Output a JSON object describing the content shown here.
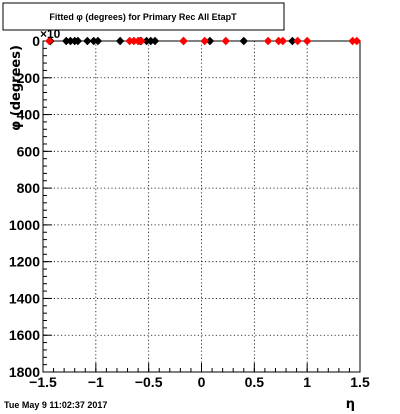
{
  "chart_data": {
    "type": "scatter",
    "title": "Fitted φ (degrees) for Primary Rec All EtapT",
    "xlabel": "η",
    "ylabel": "φ (degrees)",
    "y_exponent_label": "×10",
    "xlim": [
      -1.5,
      1.5
    ],
    "ylim": [
      1800,
      0
    ],
    "y_inverted": true,
    "grid": true,
    "x_ticks": [
      "−1.5",
      "−1",
      "−0.5",
      "0",
      "0.5",
      "1",
      "1.5"
    ],
    "y_ticks": [
      "0",
      "200",
      "400",
      "600",
      "800",
      "1000",
      "1200",
      "1400",
      "1600",
      "1800"
    ],
    "series": [
      {
        "color": "#000000",
        "marker": "diamond",
        "x": [
          -1.43,
          -1.28,
          -1.24,
          -1.2,
          -1.17,
          -1.08,
          -1.02,
          -0.98,
          -0.77,
          -0.58,
          -0.52,
          -0.48,
          -0.44,
          -0.17,
          0.08,
          0.4,
          0.86
        ],
        "y": [
          0,
          0,
          0,
          0,
          0,
          0,
          0,
          0,
          0,
          0,
          0,
          0,
          0,
          0,
          0,
          0,
          0
        ]
      },
      {
        "color": "#ff0000",
        "marker": "diamond",
        "x": [
          -1.44,
          -0.68,
          -0.64,
          -0.6,
          -0.57,
          -0.17,
          0.03,
          0.23,
          0.63,
          0.73,
          0.77,
          0.91,
          1.0,
          1.43,
          1.47
        ],
        "y": [
          0,
          0,
          0,
          0,
          0,
          0,
          0,
          0,
          0,
          0,
          0,
          0,
          0,
          0,
          0
        ]
      }
    ]
  },
  "footer": {
    "timestamp": "Tue May  9 11:02:37 2017"
  }
}
